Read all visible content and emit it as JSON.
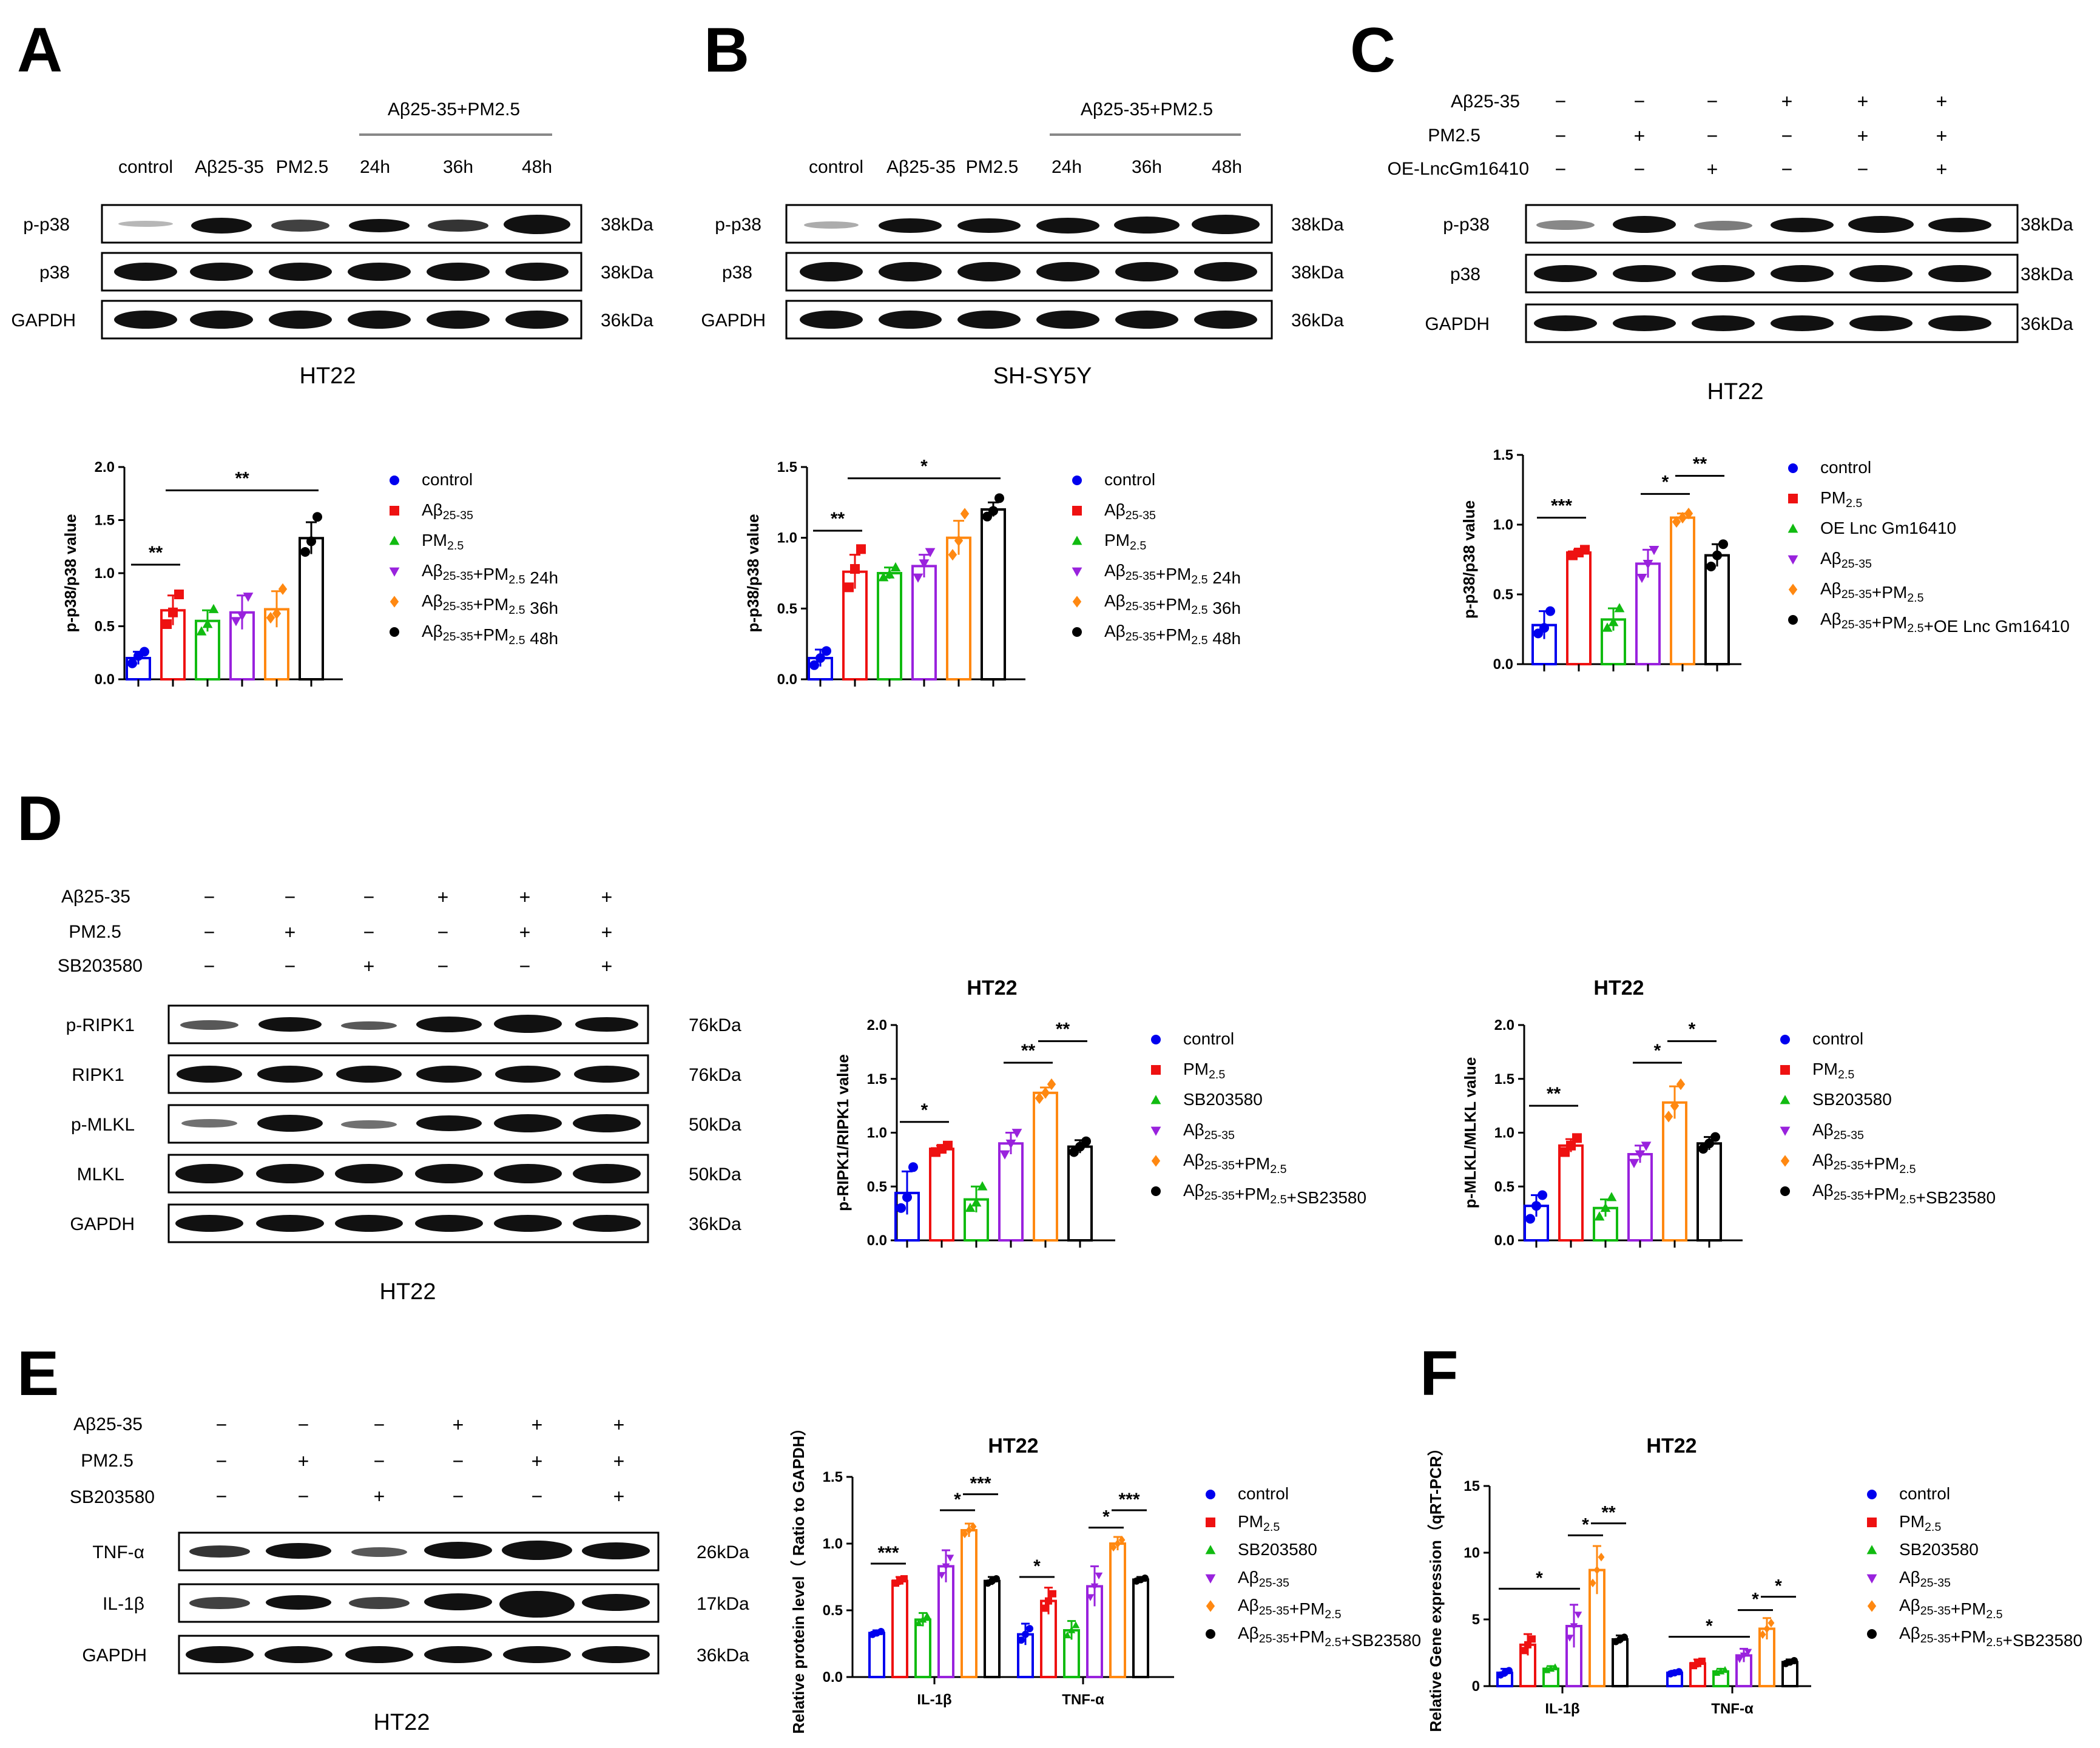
{
  "panels": {
    "A": {
      "letter": "A",
      "lanes": [
        "control",
        "Aβ25-35",
        "PM2.5",
        "24h",
        "36h",
        "48h"
      ],
      "group_label": "Aβ25-35+PM2.5",
      "rows": [
        {
          "name": "p-p38",
          "kda": "38kDa"
        },
        {
          "name": "p38",
          "kda": "38kDa"
        },
        {
          "name": "GAPDH",
          "kda": "36kDa"
        }
      ],
      "cell_line": "HT22"
    },
    "B": {
      "letter": "B",
      "lanes": [
        "control",
        "Aβ25-35",
        "PM2.5",
        "24h",
        "36h",
        "48h"
      ],
      "group_label": "Aβ25-35+PM2.5",
      "rows": [
        {
          "name": "p-p38",
          "kda": "38kDa"
        },
        {
          "name": "p38",
          "kda": "38kDa"
        },
        {
          "name": "GAPDH",
          "kda": "36kDa"
        }
      ],
      "cell_line": "SH-SY5Y"
    },
    "C": {
      "letter": "C",
      "conditions": [
        {
          "name": "Aβ25-35",
          "signs": [
            "−",
            "−",
            "−",
            "+",
            "+",
            "+"
          ]
        },
        {
          "name": "PM2.5",
          "signs": [
            "−",
            "+",
            "−",
            "−",
            "+",
            "+"
          ]
        },
        {
          "name": "OE-LncGm16410",
          "signs": [
            "−",
            "−",
            "+",
            "−",
            "−",
            "+"
          ]
        }
      ],
      "rows": [
        {
          "name": "p-p38",
          "kda": "38kDa"
        },
        {
          "name": "p38",
          "kda": "38kDa"
        },
        {
          "name": "GAPDH",
          "kda": "36kDa"
        }
      ],
      "cell_line": "HT22"
    },
    "D": {
      "letter": "D",
      "conditions": [
        {
          "name": "Aβ25-35",
          "signs": [
            "−",
            "−",
            "−",
            "+",
            "+",
            "+"
          ]
        },
        {
          "name": "PM2.5",
          "signs": [
            "−",
            "+",
            "−",
            "−",
            "+",
            "+"
          ]
        },
        {
          "name": "SB203580",
          "signs": [
            "−",
            "−",
            "+",
            "−",
            "−",
            "+"
          ]
        }
      ],
      "rows": [
        {
          "name": "p-RIPK1",
          "kda": "76kDa"
        },
        {
          "name": "RIPK1",
          "kda": "76kDa"
        },
        {
          "name": "p-MLKL",
          "kda": "50kDa"
        },
        {
          "name": "MLKL",
          "kda": "50kDa"
        },
        {
          "name": "GAPDH",
          "kda": "36kDa"
        }
      ],
      "cell_line": "HT22"
    },
    "E": {
      "letter": "E",
      "conditions": [
        {
          "name": "Aβ25-35",
          "signs": [
            "−",
            "−",
            "−",
            "+",
            "+",
            "+"
          ]
        },
        {
          "name": "PM2.5",
          "signs": [
            "−",
            "+",
            "−",
            "−",
            "+",
            "+"
          ]
        },
        {
          "name": "SB203580",
          "signs": [
            "−",
            "−",
            "+",
            "−",
            "−",
            "+"
          ]
        }
      ],
      "rows": [
        {
          "name": "TNF-α",
          "kda": "26kDa"
        },
        {
          "name": "IL-1β",
          "kda": "17kDa"
        },
        {
          "name": "GAPDH",
          "kda": "36kDa"
        }
      ],
      "cell_line": "HT22"
    },
    "F": {
      "letter": "F"
    }
  },
  "colors": [
    "#0000ee",
    "#ee1111",
    "#11bb11",
    "#9922dd",
    "#ff8811",
    "#000000"
  ],
  "chart_data": [
    {
      "id": "A",
      "type": "bar",
      "title": "",
      "ylabel": "p-p38/p38 value",
      "ylim": [
        0,
        2.0
      ],
      "yticks": [
        "0.0",
        "0.5",
        "1.0",
        "1.5",
        "2.0"
      ],
      "categories": [
        "control",
        "Aβ25-35",
        "PM2.5",
        "Aβ25-35+PM2.5 24h",
        "Aβ25-35+PM2.5 36h",
        "Aβ25-35+PM2.5 48h"
      ],
      "values": [
        0.2,
        0.65,
        0.55,
        0.63,
        0.66,
        1.33
      ],
      "errors": [
        0.06,
        0.14,
        0.1,
        0.16,
        0.17,
        0.15
      ],
      "points": [
        [
          0.15,
          0.22,
          0.26
        ],
        [
          0.52,
          0.63,
          0.8
        ],
        [
          0.45,
          0.52,
          0.66
        ],
        [
          0.55,
          0.6,
          0.78
        ],
        [
          0.58,
          0.62,
          0.85
        ],
        [
          1.2,
          1.3,
          1.53
        ]
      ],
      "markers": [
        "circle",
        "square",
        "triangle",
        "invtriangle",
        "diamond",
        "circle"
      ],
      "sig": [
        {
          "from": 0,
          "to": 1,
          "label": "**",
          "y": 1.08
        },
        {
          "from": 1,
          "to": 5,
          "label": "**",
          "y": 1.78
        }
      ]
    },
    {
      "id": "B",
      "type": "bar",
      "title": "",
      "ylabel": "p-p38/p38 value",
      "ylim": [
        0,
        1.5
      ],
      "yticks": [
        "0.0",
        "0.5",
        "1.0",
        "1.5"
      ],
      "categories": [
        "control",
        "Aβ25-35",
        "PM2.5",
        "Aβ25-35+PM2.5 24h",
        "Aβ25-35+PM2.5 36h",
        "Aβ25-35+PM2.5 48h"
      ],
      "values": [
        0.15,
        0.76,
        0.75,
        0.8,
        1.0,
        1.2
      ],
      "errors": [
        0.06,
        0.12,
        0.04,
        0.08,
        0.12,
        0.05
      ],
      "points": [
        [
          0.1,
          0.15,
          0.2
        ],
        [
          0.65,
          0.78,
          0.92
        ],
        [
          0.72,
          0.74,
          0.79
        ],
        [
          0.72,
          0.82,
          0.9
        ],
        [
          0.88,
          0.98,
          1.17
        ],
        [
          1.15,
          1.19,
          1.28
        ]
      ],
      "markers": [
        "circle",
        "square",
        "triangle",
        "invtriangle",
        "diamond",
        "circle"
      ],
      "sig": [
        {
          "from": 0,
          "to": 1,
          "label": "**",
          "y": 1.05
        },
        {
          "from": 1,
          "to": 5,
          "label": "*",
          "y": 1.42
        }
      ]
    },
    {
      "id": "C",
      "type": "bar",
      "title": "",
      "ylabel": "p-p38/p38 value",
      "ylim": [
        0,
        1.5
      ],
      "yticks": [
        "0.0",
        "0.5",
        "1.0",
        "1.5"
      ],
      "categories": [
        "control",
        "PM2.5",
        "OE Lnc Gm16410",
        "Aβ25-35",
        "Aβ25-35+PM2.5",
        "Aβ25-35+PM2.5+OE Lnc Gm16410"
      ],
      "values": [
        0.28,
        0.8,
        0.32,
        0.72,
        1.05,
        0.78
      ],
      "errors": [
        0.1,
        0.02,
        0.08,
        0.1,
        0.03,
        0.08
      ],
      "points": [
        [
          0.22,
          0.26,
          0.38
        ],
        [
          0.78,
          0.8,
          0.82
        ],
        [
          0.26,
          0.3,
          0.4
        ],
        [
          0.62,
          0.72,
          0.82
        ],
        [
          1.02,
          1.05,
          1.08
        ],
        [
          0.7,
          0.78,
          0.86
        ]
      ],
      "markers": [
        "circle",
        "square",
        "triangle",
        "invtriangle",
        "diamond",
        "circle"
      ],
      "sig": [
        {
          "from": 0,
          "to": 1,
          "label": "***",
          "y": 1.05
        },
        {
          "from": 3,
          "to": 4,
          "label": "*",
          "y": 1.22
        },
        {
          "from": 4,
          "to": 5,
          "label": "**",
          "y": 1.35
        }
      ]
    },
    {
      "id": "D1",
      "type": "bar",
      "title": "HT22",
      "ylabel": "p-RIPK1/RIPK1 value",
      "ylim": [
        0,
        2.0
      ],
      "yticks": [
        "0.0",
        "0.5",
        "1.0",
        "1.5",
        "2.0"
      ],
      "categories": [
        "control",
        "PM2.5",
        "SB203580",
        "Aβ25-35",
        "Aβ25-35+PM2.5",
        "Aβ25-35+PM2.5+SB23580"
      ],
      "values": [
        0.44,
        0.85,
        0.38,
        0.9,
        1.37,
        0.87
      ],
      "errors": [
        0.2,
        0.03,
        0.12,
        0.1,
        0.05,
        0.06
      ],
      "points": [
        [
          0.3,
          0.4,
          0.68
        ],
        [
          0.82,
          0.85,
          0.88
        ],
        [
          0.3,
          0.35,
          0.5
        ],
        [
          0.8,
          0.9,
          1.0
        ],
        [
          1.32,
          1.37,
          1.45
        ],
        [
          0.82,
          0.87,
          0.92
        ]
      ],
      "markers": [
        "circle",
        "square",
        "triangle",
        "invtriangle",
        "diamond",
        "circle"
      ],
      "sig": [
        {
          "from": 0,
          "to": 1,
          "label": "*",
          "y": 1.1
        },
        {
          "from": 3,
          "to": 4,
          "label": "**",
          "y": 1.65
        },
        {
          "from": 4,
          "to": 5,
          "label": "**",
          "y": 1.85
        }
      ]
    },
    {
      "id": "D2",
      "type": "bar",
      "title": "HT22",
      "ylabel": "p-MLKL/MLKL value",
      "ylim": [
        0,
        2.0
      ],
      "yticks": [
        "0.0",
        "0.5",
        "1.0",
        "1.5",
        "2.0"
      ],
      "categories": [
        "control",
        "PM2.5",
        "SB203580",
        "Aβ25-35",
        "Aβ25-35+PM2.5",
        "Aβ25-35+PM2.5+SB23580"
      ],
      "values": [
        0.32,
        0.88,
        0.3,
        0.8,
        1.28,
        0.9
      ],
      "errors": [
        0.1,
        0.06,
        0.08,
        0.08,
        0.15,
        0.06
      ],
      "points": [
        [
          0.2,
          0.32,
          0.42
        ],
        [
          0.82,
          0.88,
          0.95
        ],
        [
          0.22,
          0.3,
          0.4
        ],
        [
          0.72,
          0.8,
          0.88
        ],
        [
          1.15,
          1.25,
          1.45
        ],
        [
          0.85,
          0.9,
          0.96
        ]
      ],
      "markers": [
        "circle",
        "square",
        "triangle",
        "invtriangle",
        "diamond",
        "circle"
      ],
      "sig": [
        {
          "from": 0,
          "to": 1,
          "label": "**",
          "y": 1.25
        },
        {
          "from": 3,
          "to": 4,
          "label": "*",
          "y": 1.65
        },
        {
          "from": 4,
          "to": 5,
          "label": "*",
          "y": 1.85
        }
      ]
    },
    {
      "id": "E",
      "type": "bar",
      "title": "HT22",
      "ylabel": "Relative protein level（ Ratio to GAPDH）",
      "ylim": [
        0,
        1.5
      ],
      "yticks": [
        "0.0",
        "0.5",
        "1.0",
        "1.5"
      ],
      "groups": [
        "IL-1β",
        "TNF-α"
      ],
      "series_names": [
        "control",
        "PM2.5",
        "SB203580",
        "Aβ25-35",
        "Aβ25-35+PM2.5",
        "Aβ25-35+PM2.5+SB23580"
      ],
      "values": [
        [
          0.33,
          0.72,
          0.43,
          0.83,
          1.1,
          0.72
        ],
        [
          0.32,
          0.57,
          0.35,
          0.68,
          1.0,
          0.73
        ]
      ],
      "errors": [
        [
          0.02,
          0.03,
          0.05,
          0.12,
          0.05,
          0.03
        ],
        [
          0.08,
          0.1,
          0.07,
          0.15,
          0.05,
          0.02
        ]
      ],
      "markers": [
        "circle",
        "square",
        "triangle",
        "invtriangle",
        "diamond",
        "circle"
      ],
      "sig": [
        {
          "group": 0,
          "from": 0,
          "to": 1,
          "label": "***",
          "y": 0.85
        },
        {
          "group": 0,
          "from": 3,
          "to": 4,
          "label": "*",
          "y": 1.25
        },
        {
          "group": 0,
          "from": 4,
          "to": 5,
          "label": "***",
          "y": 1.37
        },
        {
          "group": 1,
          "from": 0,
          "to": 1,
          "label": "*",
          "y": 0.75
        },
        {
          "group": 1,
          "from": 3,
          "to": 4,
          "label": "*",
          "y": 1.12
        },
        {
          "group": 1,
          "from": 4,
          "to": 5,
          "label": "***",
          "y": 1.25
        }
      ]
    },
    {
      "id": "F",
      "type": "bar",
      "title": "HT22",
      "ylabel": "Relative Gene expression（qRT-PCR）",
      "ylim": [
        0,
        15
      ],
      "yticks": [
        "0",
        "5",
        "10",
        "15"
      ],
      "groups": [
        "IL-1β",
        "TNF-α"
      ],
      "series_names": [
        "control",
        "PM2.5",
        "SB203580",
        "Aβ25-35",
        "Aβ25-35+PM2.5",
        "Aβ25-35+PM2.5+SB23580"
      ],
      "values": [
        [
          1.0,
          3.1,
          1.3,
          4.5,
          8.7,
          3.5
        ],
        [
          1.0,
          1.7,
          1.1,
          2.3,
          4.3,
          1.8
        ]
      ],
      "errors": [
        [
          0.3,
          0.8,
          0.2,
          1.6,
          1.8,
          0.3
        ],
        [
          0.15,
          0.3,
          0.2,
          0.5,
          0.8,
          0.2
        ]
      ],
      "markers": [
        "circle",
        "square",
        "triangle",
        "invtriangle",
        "diamond",
        "circle"
      ],
      "sig": [
        {
          "group": 0,
          "from": 0,
          "to": 3,
          "label": "*",
          "y": 7.3
        },
        {
          "group": 0,
          "from": 3,
          "to": 4,
          "label": "*",
          "y": 11.3
        },
        {
          "group": 0,
          "from": 4,
          "to": 5,
          "label": "**",
          "y": 12.2
        },
        {
          "group": 1,
          "from": 0,
          "to": 3,
          "label": "*",
          "y": 3.7
        },
        {
          "group": 1,
          "from": 3,
          "to": 4,
          "label": "*",
          "y": 5.7
        },
        {
          "group": 1,
          "from": 4,
          "to": 5,
          "label": "*",
          "y": 6.7
        }
      ]
    }
  ]
}
